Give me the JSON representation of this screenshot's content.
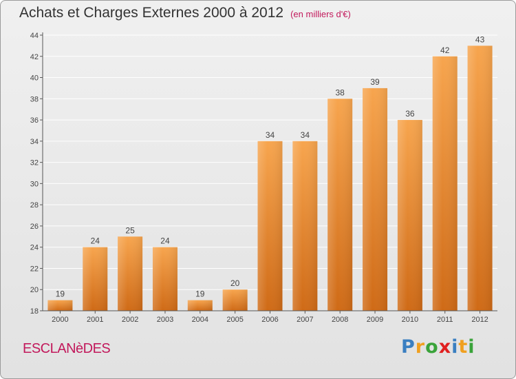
{
  "header": {
    "title": "Achats et Charges Externes 2000 à 2012",
    "subtitle": "(en milliers d'€)"
  },
  "commune": "ESCLANèDES",
  "logo": {
    "text": "Proxiti",
    "letters": [
      {
        "ch": "P",
        "color": "#3a7fc1"
      },
      {
        "ch": "r",
        "color": "#f0a020"
      },
      {
        "ch": "o",
        "color": "#3aa33a"
      },
      {
        "ch": "x",
        "color": "#e02020"
      },
      {
        "ch": "i",
        "color": "#3a7fc1"
      },
      {
        "ch": "t",
        "color": "#f0a020"
      },
      {
        "ch": "i",
        "color": "#3aa33a"
      }
    ]
  },
  "colors": {
    "bar_top": "#f7a54e",
    "bar_bottom": "#cf6a16",
    "axis": "#555555",
    "grid": "#ffffff"
  },
  "chart_data": {
    "type": "bar",
    "title": "Achats et Charges Externes 2000 à 2012",
    "subtitle": "(en milliers d'€)",
    "xlabel": "",
    "ylabel": "",
    "categories": [
      "2000",
      "2001",
      "2002",
      "2003",
      "2004",
      "2005",
      "2006",
      "2007",
      "2008",
      "2009",
      "2010",
      "2011",
      "2012"
    ],
    "values": [
      19,
      24,
      25,
      24,
      19,
      20,
      34,
      34,
      38,
      39,
      36,
      42,
      43
    ],
    "ylim": [
      18,
      44
    ],
    "yticks": [
      18,
      20,
      22,
      24,
      26,
      28,
      30,
      32,
      34,
      36,
      38,
      40,
      42,
      44
    ],
    "grid": true,
    "data_labels": true
  }
}
